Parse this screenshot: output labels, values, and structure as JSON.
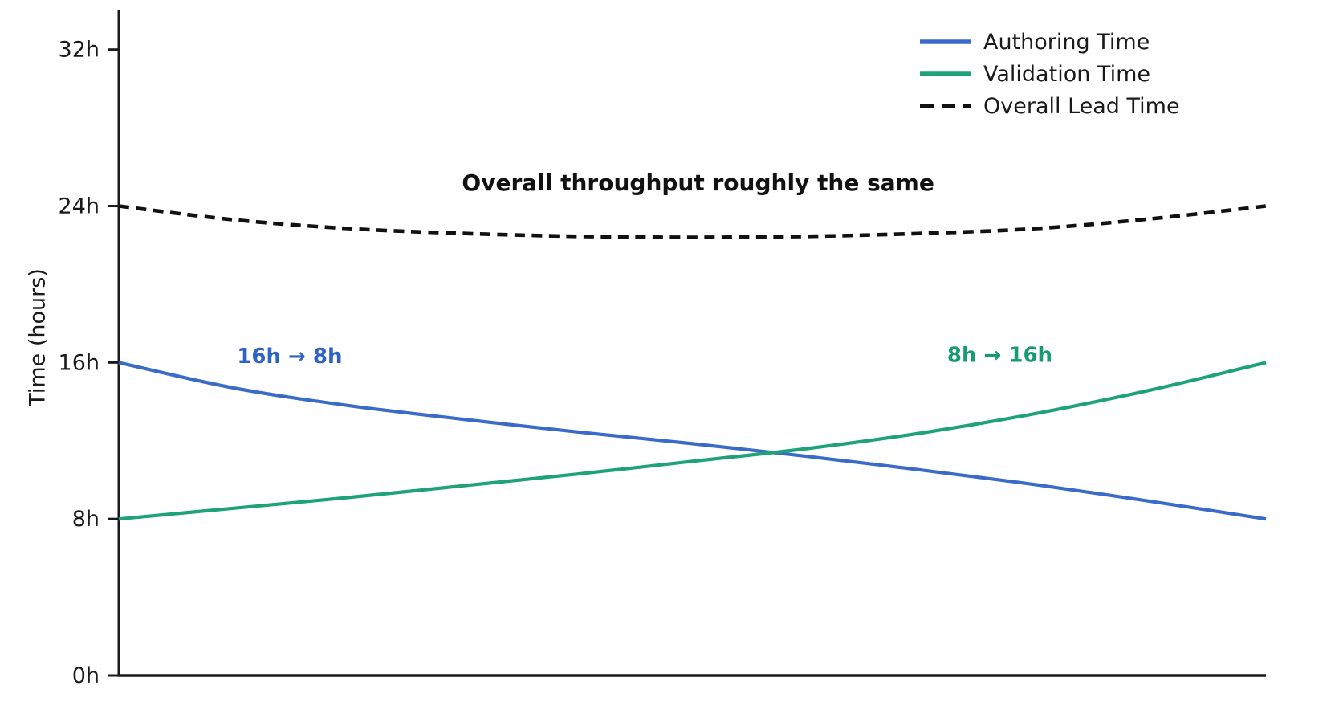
{
  "figure": {
    "background": "#ffffff",
    "text_color": "#1a1a1a",
    "axis_color": "#1a1a1a"
  },
  "legend": {
    "items": [
      {
        "label": "Authoring Time",
        "color": "#3b6bc9",
        "dash": false
      },
      {
        "label": "Validation Time",
        "color": "#1ea277",
        "dash": false
      },
      {
        "label": "Overall Lead Time",
        "color": "#111111",
        "dash": true
      }
    ]
  },
  "chart_data": {
    "type": "line",
    "title": "",
    "xlabel": "",
    "ylabel": "Time (hours)",
    "xlim": [
      0,
      1
    ],
    "ylim": [
      0,
      34
    ],
    "grid": false,
    "x_tick_labels": "none",
    "legend_position": "top-right",
    "x": [
      0,
      0.1,
      0.2,
      0.3,
      0.4,
      0.5,
      0.6,
      0.7,
      0.8,
      0.9,
      1.0
    ],
    "series": [
      {
        "name": "Authoring Time",
        "color": "#3b6bc9",
        "style": "solid",
        "values": [
          16.0,
          14.7,
          13.8,
          13.1,
          12.45,
          11.85,
          11.2,
          10.5,
          9.75,
          8.9,
          8.0
        ]
      },
      {
        "name": "Validation Time",
        "color": "#1ea277",
        "style": "solid",
        "values": [
          8.0,
          8.55,
          9.1,
          9.7,
          10.3,
          10.95,
          11.6,
          12.4,
          13.4,
          14.6,
          16.0
        ]
      },
      {
        "name": "Overall Lead Time",
        "color": "#111111",
        "style": "dashed",
        "values": [
          24.0,
          23.3,
          22.85,
          22.6,
          22.45,
          22.4,
          22.45,
          22.6,
          22.85,
          23.35,
          24.0
        ]
      }
    ],
    "yticks": [
      {
        "value": 0,
        "label": "0h"
      },
      {
        "value": 8,
        "label": "8h"
      },
      {
        "value": 16,
        "label": "16h"
      },
      {
        "value": 24,
        "label": "24h"
      },
      {
        "value": 32,
        "label": "32h"
      }
    ],
    "annotations": [
      {
        "text": "16h → 8h",
        "color": "#2e62c5",
        "x": 0.149,
        "y": 16.35,
        "bold": true
      },
      {
        "text": "8h → 16h",
        "color": "#189b6d",
        "x": 0.768,
        "y": 16.4,
        "bold": true
      },
      {
        "text": "Overall throughput roughly the same",
        "color": "#111111",
        "x": 0.505,
        "y": 25.2,
        "bold": true
      }
    ]
  }
}
